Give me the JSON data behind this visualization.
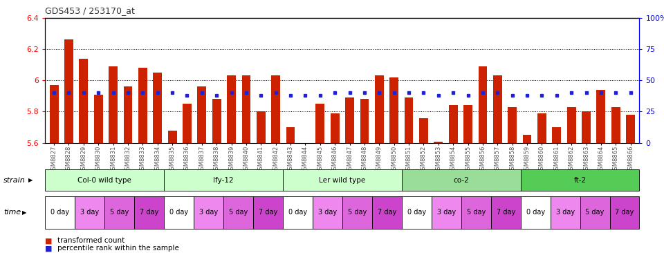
{
  "title": "GDS453 / 253170_at",
  "samples": [
    "GSM8827",
    "GSM8828",
    "GSM8829",
    "GSM8830",
    "GSM8831",
    "GSM8832",
    "GSM8833",
    "GSM8834",
    "GSM8835",
    "GSM8836",
    "GSM8837",
    "GSM8838",
    "GSM8839",
    "GSM8840",
    "GSM8841",
    "GSM8842",
    "GSM8843",
    "GSM8844",
    "GSM8845",
    "GSM8846",
    "GSM8847",
    "GSM8848",
    "GSM8849",
    "GSM8850",
    "GSM8851",
    "GSM8852",
    "GSM8853",
    "GSM8854",
    "GSM8855",
    "GSM8856",
    "GSM8857",
    "GSM8858",
    "GSM8859",
    "GSM8860",
    "GSM8861",
    "GSM8862",
    "GSM8863",
    "GSM8864",
    "GSM8865",
    "GSM8866"
  ],
  "red_values": [
    5.97,
    6.26,
    6.14,
    5.91,
    6.09,
    5.96,
    6.08,
    6.05,
    5.68,
    5.85,
    5.96,
    5.88,
    6.03,
    6.03,
    5.8,
    6.03,
    5.7,
    5.57,
    5.85,
    5.79,
    5.89,
    5.88,
    6.03,
    6.02,
    5.89,
    5.76,
    5.61,
    5.84,
    5.84,
    6.09,
    6.03,
    5.83,
    5.65,
    5.79,
    5.7,
    5.83,
    5.8,
    5.94,
    5.83,
    5.78
  ],
  "blue_pcts": [
    40,
    40,
    40,
    40,
    40,
    40,
    40,
    40,
    40,
    38,
    40,
    38,
    40,
    40,
    38,
    40,
    38,
    38,
    38,
    40,
    40,
    40,
    40,
    40,
    40,
    40,
    38,
    40,
    38,
    40,
    40,
    38,
    38,
    38,
    38,
    40,
    40,
    40,
    40,
    40
  ],
  "strains": [
    {
      "label": "Col-0 wild type",
      "start": 0,
      "end": 8,
      "color": "#ccffcc"
    },
    {
      "label": "lfy-12",
      "start": 8,
      "end": 16,
      "color": "#ccffcc"
    },
    {
      "label": "Ler wild type",
      "start": 16,
      "end": 24,
      "color": "#ccffcc"
    },
    {
      "label": "co-2",
      "start": 24,
      "end": 32,
      "color": "#99dd99"
    },
    {
      "label": "ft-2",
      "start": 32,
      "end": 40,
      "color": "#55cc55"
    }
  ],
  "time_labels": [
    "0 day",
    "3 day",
    "5 day",
    "7 day"
  ],
  "time_colors": [
    "#ffffff",
    "#ee88ee",
    "#dd66dd",
    "#cc44cc"
  ],
  "ylim_left": [
    5.6,
    6.4
  ],
  "ylim_right": [
    0,
    100
  ],
  "bar_color": "#cc2200",
  "blue_color": "#2222cc",
  "bg_color": "#ffffff"
}
